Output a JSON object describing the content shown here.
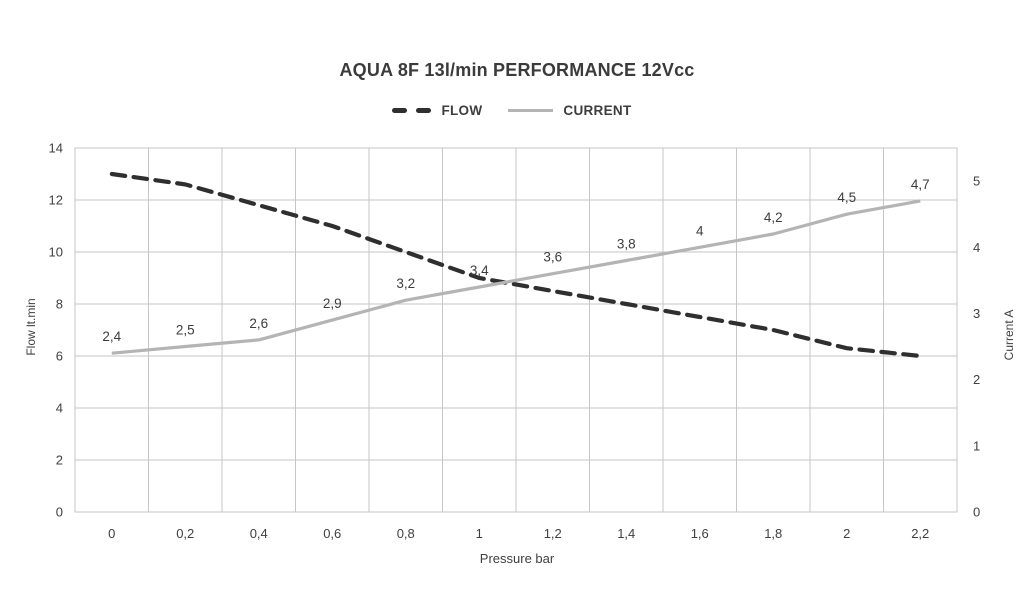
{
  "title": "AQUA 8F 13l/min PERFORMANCE 12Vcc",
  "legend": {
    "flow_label": "FLOW",
    "current_label": "CURRENT"
  },
  "colors": {
    "flow_line": "#2f2f2f",
    "current_line": "#b4b4b4",
    "grid": "#c6c6c6",
    "text": "#404040"
  },
  "axes": {
    "x": {
      "title": "Pressure bar",
      "tick_labels": [
        "0",
        "0,2",
        "0,4",
        "0,6",
        "0,8",
        "1",
        "1,2",
        "1,4",
        "1,6",
        "1,8",
        "2",
        "2,2"
      ]
    },
    "y_left": {
      "title": "Flow lt.min",
      "ticks": [
        0,
        2,
        4,
        6,
        8,
        10,
        12,
        14
      ]
    },
    "y_right": {
      "title": "Current A",
      "ticks": [
        0,
        1,
        2,
        3,
        4,
        5
      ]
    }
  },
  "chart_data": {
    "type": "line",
    "title": "AQUA 8F 13l/min PERFORMANCE 12Vcc",
    "xlabel": "Pressure bar",
    "ylabel_left": "Flow lt.min",
    "ylabel_right": "Current A",
    "x": [
      0,
      0.2,
      0.4,
      0.6,
      0.8,
      1,
      1.2,
      1.4,
      1.6,
      1.8,
      2,
      2.2
    ],
    "ylim_left": [
      0,
      14
    ],
    "ylim_right": [
      0,
      5.5
    ],
    "grid": true,
    "legend_position": "top",
    "series": [
      {
        "name": "FLOW",
        "axis": "left",
        "style": "dashed",
        "values": [
          13,
          12.6,
          11.8,
          11,
          10,
          9,
          8.5,
          8,
          7.5,
          7,
          6.3,
          6
        ],
        "data_labels": null
      },
      {
        "name": "CURRENT",
        "axis": "right",
        "style": "solid",
        "values": [
          2.4,
          2.5,
          2.6,
          2.9,
          3.2,
          3.4,
          3.6,
          3.8,
          4,
          4.2,
          4.5,
          4.7
        ],
        "data_labels": [
          "2,4",
          "2,5",
          "2,6",
          "2,9",
          "3,2",
          "3,4",
          "3,6",
          "3,8",
          "4",
          "4,2",
          "4,5",
          "4,7"
        ]
      }
    ]
  }
}
